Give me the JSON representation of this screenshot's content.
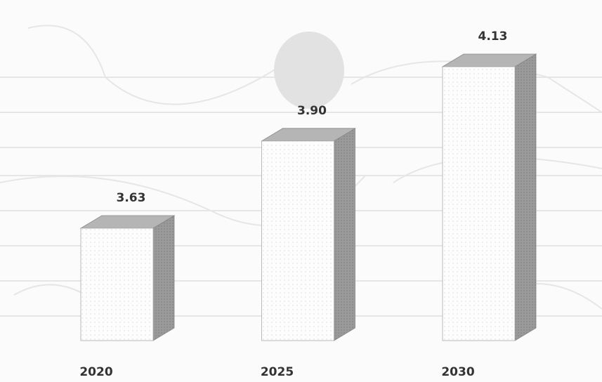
{
  "chart_data": {
    "type": "bar3d",
    "categories": [
      "2020",
      "2025",
      "2030"
    ],
    "values": [
      3.63,
      3.9,
      4.13
    ],
    "value_labels": [
      "3.63",
      "3.90",
      "4.13"
    ],
    "color": "#ffffff"
  }
}
